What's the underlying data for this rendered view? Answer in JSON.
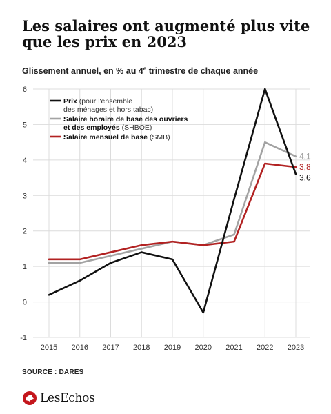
{
  "header": {
    "title": "Les salaires ont augmenté plus vite que les prix en 2023",
    "subtitle_main": "Glissement annuel, en % au 4",
    "subtitle_sup": "e",
    "subtitle_rest": " trimestre de chaque année"
  },
  "chart_data": {
    "type": "line",
    "x": [
      "2015",
      "2016",
      "2017",
      "2018",
      "2019",
      "2020",
      "2021",
      "2022",
      "2023"
    ],
    "ylim": [
      -1,
      6
    ],
    "yticks": [
      "-1",
      "0",
      "1",
      "2",
      "3",
      "4",
      "5",
      "6"
    ],
    "grid": true,
    "legend_placement": "top-left",
    "series": [
      {
        "name": "Prix",
        "name_note": " (pour l'ensemble",
        "name_line2": "des ménages et hors tabac)",
        "color": "#111111",
        "values": [
          0.2,
          0.6,
          1.1,
          1.4,
          1.2,
          -0.3,
          2.9,
          6.0,
          3.6
        ],
        "end_label": "3,6"
      },
      {
        "name": "Salaire horaire de base des ouvriers",
        "name_line2": "et des employés",
        "name_note": " (SHBOE)",
        "color": "#a3a3a3",
        "values": [
          1.1,
          1.1,
          1.3,
          1.5,
          1.7,
          1.6,
          1.9,
          4.5,
          4.1
        ],
        "end_label": "4,1"
      },
      {
        "name": "Salaire mensuel de base",
        "name_note": " (SMB)",
        "color": "#b22222",
        "values": [
          1.2,
          1.2,
          1.4,
          1.6,
          1.7,
          1.6,
          1.7,
          3.9,
          3.8
        ],
        "end_label": "3,8"
      }
    ]
  },
  "footer": {
    "source": "SOURCE : DARES",
    "logo_text": "LesEchos"
  }
}
